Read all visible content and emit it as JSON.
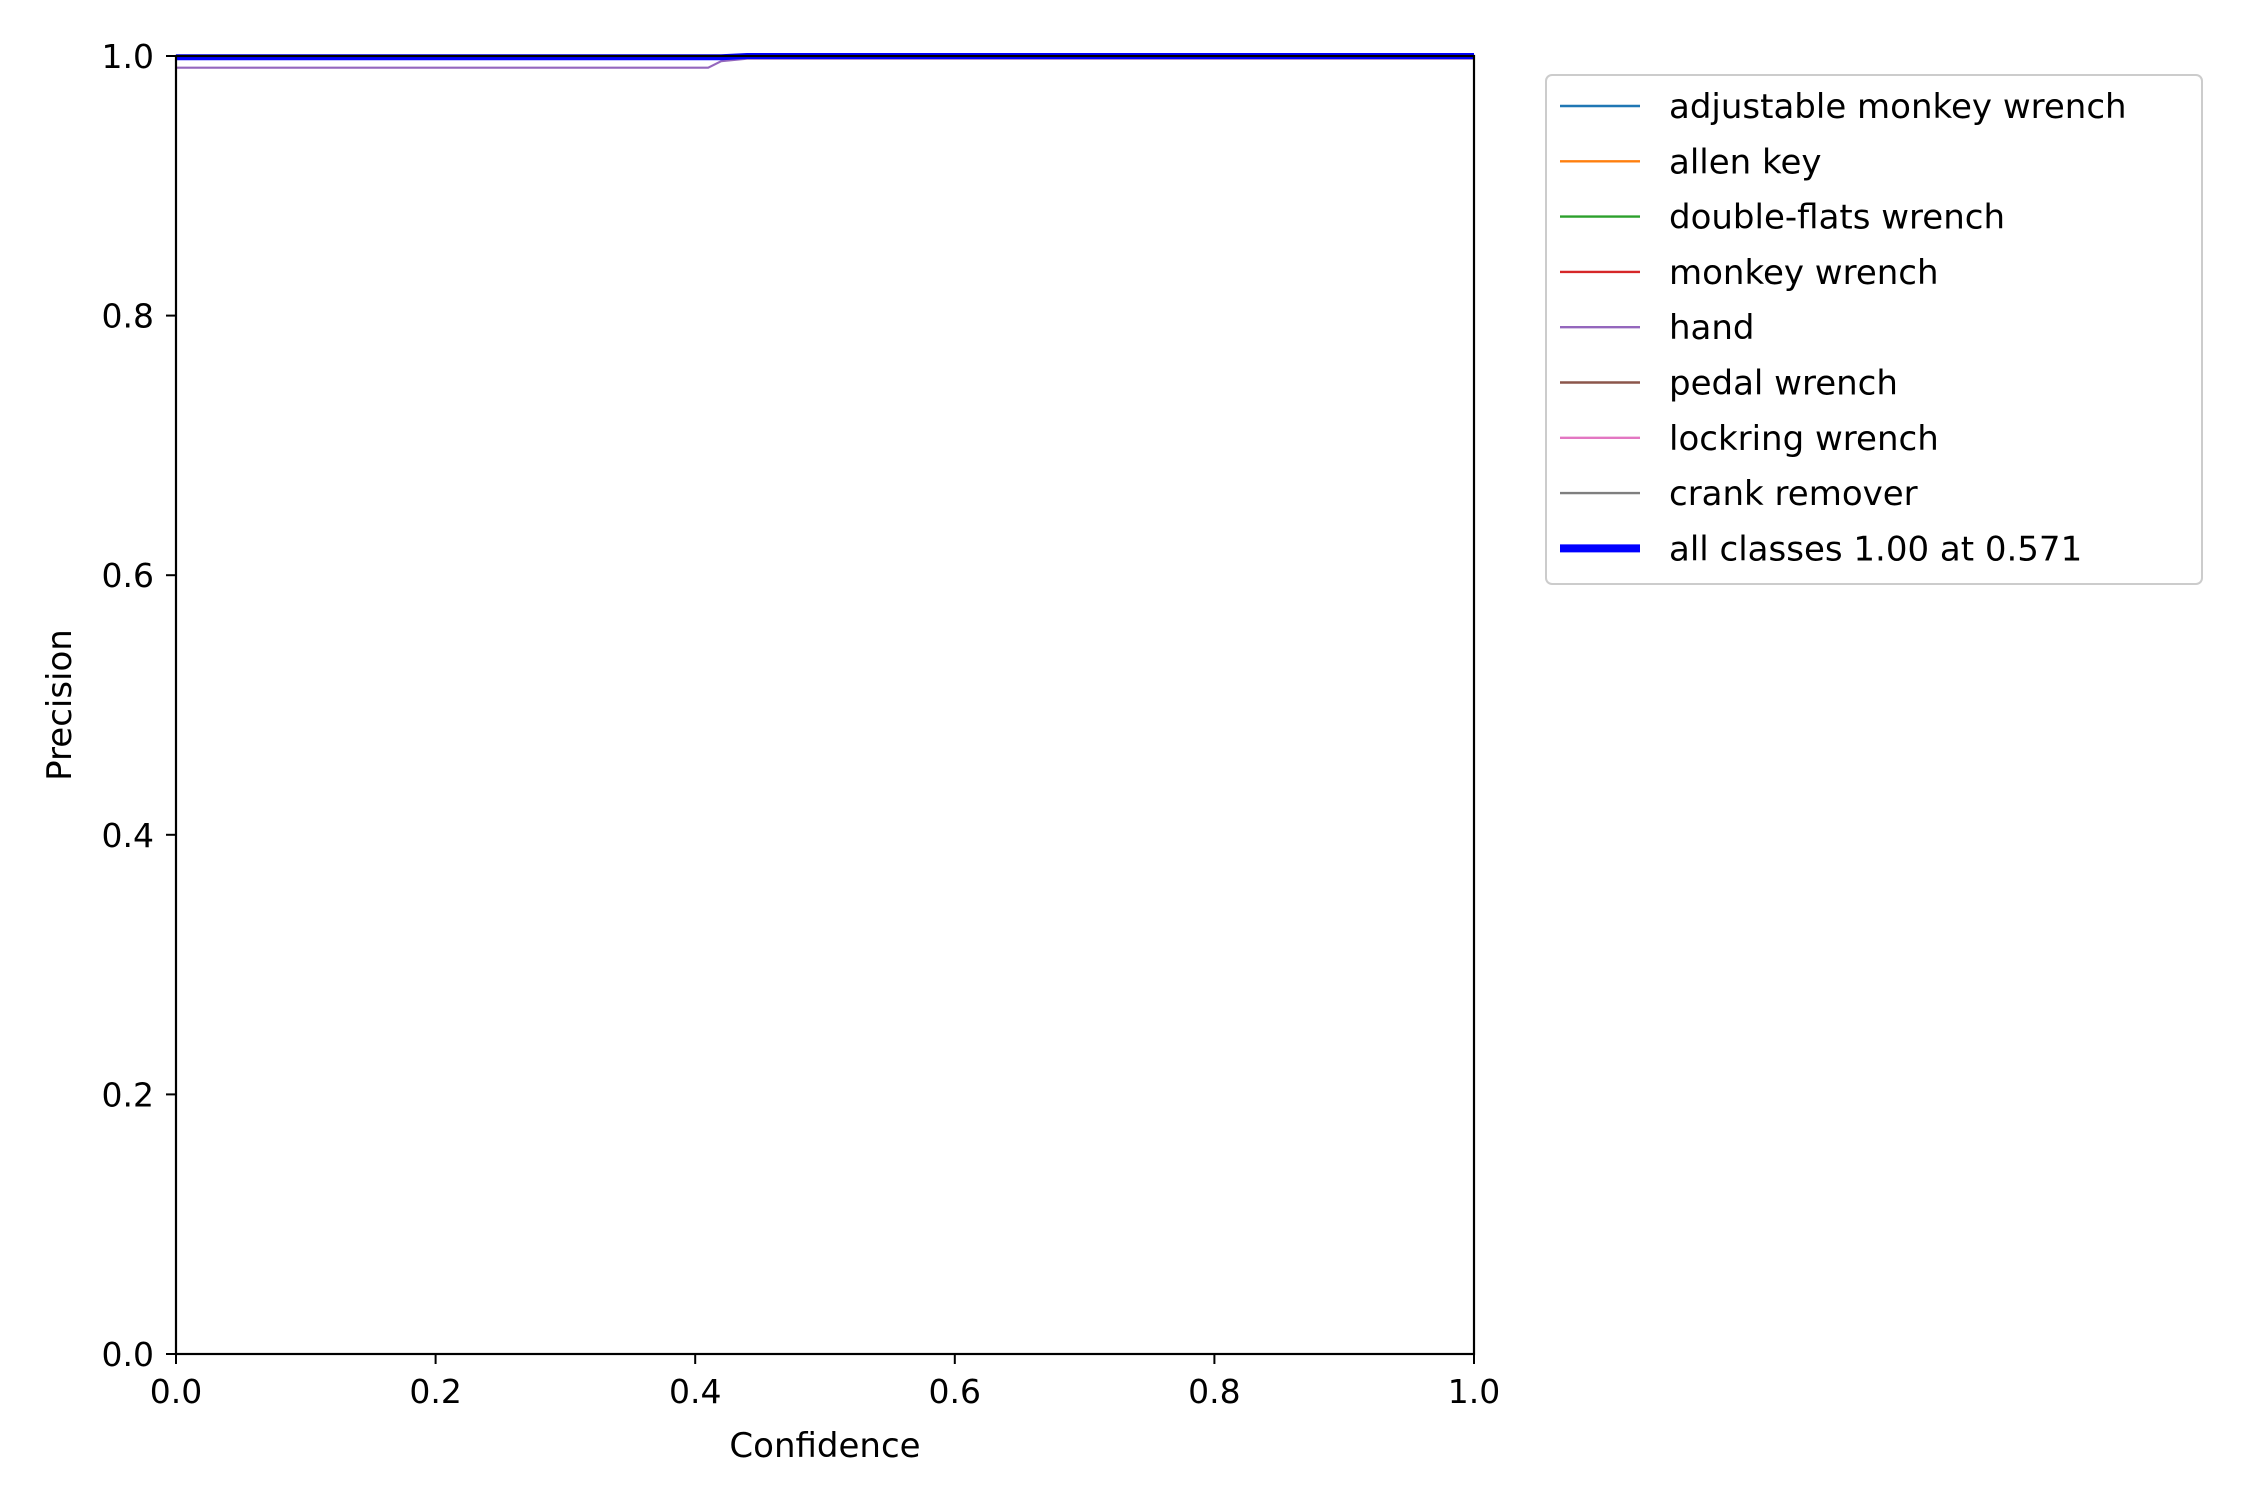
{
  "chart_data": {
    "type": "line",
    "xlabel": "Confidence",
    "ylabel": "Precision",
    "xlim": [
      0,
      1
    ],
    "ylim": [
      0,
      1
    ],
    "grid": false,
    "legend_placement": "outside-right-top",
    "x_ticks": [
      "0.0",
      "0.2",
      "0.4",
      "0.6",
      "0.8",
      "1.0"
    ],
    "y_ticks": [
      "0.0",
      "0.2",
      "0.4",
      "0.6",
      "0.8",
      "1.0"
    ],
    "series": [
      {
        "name": "adjustable monkey wrench",
        "color": "#1f77b4",
        "x": [
          0,
          1
        ],
        "y": [
          1.0,
          1.0
        ]
      },
      {
        "name": "allen key",
        "color": "#ff7f0e",
        "x": [
          0,
          1
        ],
        "y": [
          1.0,
          1.0
        ]
      },
      {
        "name": "double-flats wrench",
        "color": "#2ca02c",
        "x": [
          0,
          1
        ],
        "y": [
          1.0,
          1.0
        ]
      },
      {
        "name": "monkey wrench",
        "color": "#d62728",
        "x": [
          0,
          1
        ],
        "y": [
          1.0,
          1.0
        ]
      },
      {
        "name": "hand",
        "color": "#9467bd",
        "x": [
          0,
          0.41,
          0.42,
          0.44,
          1.0
        ],
        "y": [
          0.991,
          0.991,
          0.996,
          0.998,
          0.998
        ]
      },
      {
        "name": "pedal wrench",
        "color": "#8c564b",
        "x": [
          0,
          1
        ],
        "y": [
          1.0,
          1.0
        ]
      },
      {
        "name": "lockring wrench",
        "color": "#e377c2",
        "x": [
          0,
          1
        ],
        "y": [
          1.0,
          1.0
        ]
      },
      {
        "name": "crank remover",
        "color": "#7f7f7f",
        "x": [
          0,
          1
        ],
        "y": [
          1.0,
          1.0
        ]
      },
      {
        "name": "all classes 1.00 at 0.571",
        "color": "#0000ff",
        "bold": true,
        "x": [
          0,
          0.42,
          0.44,
          1.0
        ],
        "y": [
          0.999,
          0.999,
          1.0,
          1.0
        ]
      }
    ]
  }
}
